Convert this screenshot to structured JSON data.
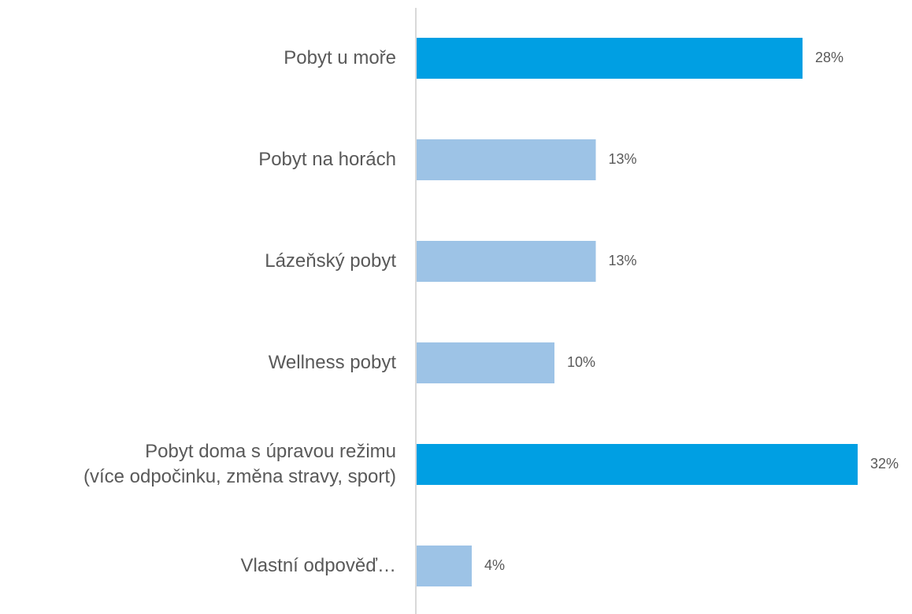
{
  "chart_data": {
    "type": "barh",
    "categories": [
      "Pobyt u moře",
      "Pobyt na horách",
      "Lázeňský pobyt",
      "Wellness pobyt",
      "Pobyt doma s úpravou režimu\n(více odpočinku, změna stravy, sport)",
      "Vlastní odpověď…"
    ],
    "values": [
      28,
      13,
      13,
      10,
      32,
      4
    ],
    "value_labels": [
      "28%",
      "13%",
      "13%",
      "10%",
      "32%",
      "4%"
    ],
    "colors": [
      "#009fe3",
      "#9dc3e6",
      "#9dc3e6",
      "#9dc3e6",
      "#009fe3",
      "#9dc3e6"
    ]
  }
}
